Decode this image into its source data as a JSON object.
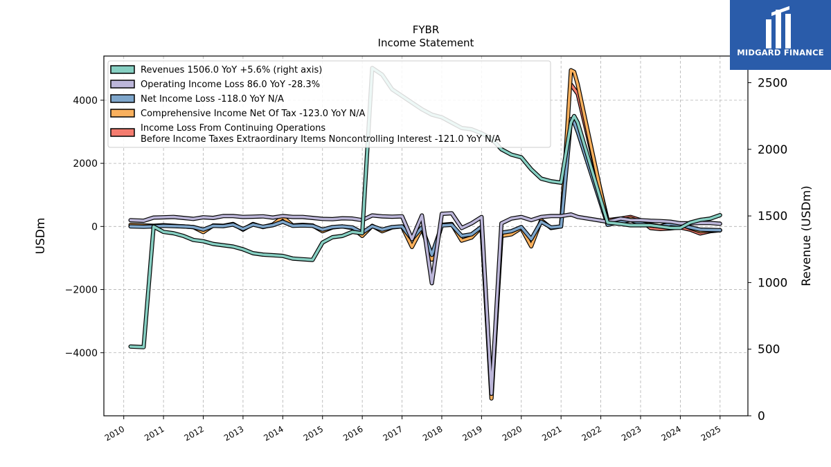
{
  "brand": {
    "name": "MIDGARD FINANCE",
    "color": "#2a5caa"
  },
  "chart_data": {
    "type": "line",
    "title": "FYBR",
    "subtitle": "Income Statement",
    "ylabel": "USDm",
    "ylabel_right": "Revenue (USDm)",
    "ylim": [
      -6000,
      5400
    ],
    "ylim_right": [
      0,
      2700
    ],
    "xlim": [
      2009.5,
      2025.7
    ],
    "yticks": [
      -4000,
      -2000,
      0,
      2000,
      4000
    ],
    "yticks_right": [
      0,
      500,
      1000,
      1500,
      2000,
      2500
    ],
    "xticks": [
      "2010",
      "2011",
      "2012",
      "2013",
      "2014",
      "2015",
      "2016",
      "2017",
      "2018",
      "2019",
      "2020",
      "2021",
      "2022",
      "2023",
      "2024",
      "2025"
    ],
    "grid": true,
    "legend_position": "top-left",
    "series": [
      {
        "name": "Income Loss From Continuing Operations\nBefore Income Taxes Extraordinary Items Noncontrolling Interest  -121.0 YoY N/A",
        "color": "#f47c6f",
        "axis": "left",
        "x": [
          2021.25,
          2021.42,
          2022.17,
          2022.5,
          2022.75,
          2023.0,
          2023.25,
          2023.5,
          2023.75,
          2024.0,
          2024.25,
          2024.5,
          2024.75,
          2025.0
        ],
        "y": [
          4500,
          4200,
          200,
          250,
          300,
          200,
          -50,
          -80,
          -60,
          -30,
          -100,
          -220,
          -150,
          -121
        ]
      },
      {
        "name": "Comprehensive Income Net Of Tax  -123.0 YoY N/A",
        "color": "#f9b05d",
        "axis": "left",
        "x": [
          2010.17,
          2010.5,
          2010.75,
          2011.0,
          2011.25,
          2011.5,
          2011.75,
          2012.0,
          2012.25,
          2012.5,
          2012.75,
          2013.0,
          2013.25,
          2013.5,
          2013.75,
          2014.0,
          2014.25,
          2014.5,
          2014.75,
          2015.0,
          2015.25,
          2015.5,
          2015.75,
          2016.0,
          2016.25,
          2016.5,
          2016.75,
          2017.0,
          2017.25,
          2017.5,
          2017.75,
          2018.0,
          2018.25,
          2018.5,
          2018.75,
          2019.0,
          2019.25,
          2019.5,
          2019.75,
          2020.0,
          2020.25,
          2020.5,
          2020.75,
          2021.0,
          2021.25,
          2021.33,
          2021.42,
          2022.17,
          2022.5,
          2022.75,
          2023.0,
          2023.25,
          2023.5,
          2023.75,
          2024.0,
          2024.25,
          2024.5,
          2024.75,
          2025.0
        ],
        "y": [
          50,
          30,
          20,
          40,
          20,
          0,
          -20,
          -180,
          30,
          20,
          80,
          -100,
          80,
          -20,
          60,
          300,
          30,
          50,
          30,
          -150,
          -30,
          0,
          -50,
          -300,
          20,
          -150,
          -30,
          0,
          -650,
          -50,
          -1050,
          50,
          80,
          -450,
          -350,
          -20,
          -5450,
          -300,
          -250,
          -50,
          -630,
          200,
          -50,
          0,
          4950,
          4900,
          4500,
          100,
          200,
          250,
          150,
          50,
          0,
          100,
          80,
          -50,
          -150,
          -130,
          -123
        ]
      },
      {
        "name": "Net Income Loss  -118.0 YoY N/A",
        "color": "#7ea6cb",
        "axis": "left",
        "x": [
          2010.17,
          2010.5,
          2010.75,
          2011.0,
          2011.25,
          2011.5,
          2011.75,
          2012.0,
          2012.25,
          2012.5,
          2012.75,
          2013.0,
          2013.25,
          2013.5,
          2013.75,
          2014.0,
          2014.25,
          2014.5,
          2014.75,
          2015.0,
          2015.25,
          2015.5,
          2015.75,
          2016.0,
          2016.25,
          2016.5,
          2016.75,
          2017.0,
          2017.25,
          2017.5,
          2017.75,
          2018.0,
          2018.25,
          2018.5,
          2018.75,
          2019.0,
          2019.25,
          2019.5,
          2019.75,
          2020.0,
          2020.25,
          2020.5,
          2020.75,
          2021.0,
          2021.25,
          2021.33,
          2021.42,
          2022.17,
          2022.5,
          2022.75,
          2023.0,
          2023.25,
          2023.5,
          2023.75,
          2024.0,
          2024.25,
          2024.5,
          2024.75,
          2025.0
        ],
        "y": [
          0,
          -10,
          0,
          20,
          10,
          0,
          -20,
          -100,
          20,
          10,
          60,
          -80,
          60,
          -10,
          40,
          150,
          20,
          30,
          20,
          -100,
          -20,
          0,
          -30,
          -200,
          10,
          -100,
          -20,
          0,
          -400,
          -30,
          -900,
          30,
          50,
          -300,
          -250,
          -10,
          -5300,
          -200,
          -150,
          -20,
          -400,
          150,
          -30,
          0,
          3400,
          3300,
          3000,
          50,
          150,
          200,
          100,
          30,
          0,
          80,
          50,
          -30,
          -100,
          -110,
          -118
        ]
      },
      {
        "name": "Operating Income Loss  86.0 YoY -28.3%",
        "color": "#bcb6d9",
        "axis": "left",
        "x": [
          2010.17,
          2010.5,
          2010.75,
          2011.0,
          2011.25,
          2011.5,
          2011.75,
          2012.0,
          2012.25,
          2012.5,
          2012.75,
          2013.0,
          2013.25,
          2013.5,
          2013.75,
          2014.0,
          2014.25,
          2014.5,
          2014.75,
          2015.0,
          2015.25,
          2015.5,
          2015.75,
          2016.0,
          2016.25,
          2016.5,
          2016.75,
          2017.0,
          2017.25,
          2017.5,
          2017.75,
          2018.0,
          2018.25,
          2018.5,
          2018.75,
          2019.0,
          2019.25,
          2019.5,
          2019.75,
          2020.0,
          2020.25,
          2020.5,
          2020.75,
          2021.0,
          2021.25,
          2021.42,
          2022.17,
          2022.5,
          2022.75,
          2023.0,
          2023.25,
          2023.5,
          2023.75,
          2024.0,
          2024.25,
          2024.5,
          2024.75,
          2025.0
        ],
        "y": [
          200,
          180,
          280,
          290,
          300,
          270,
          240,
          290,
          270,
          330,
          330,
          300,
          310,
          320,
          280,
          330,
          300,
          300,
          270,
          240,
          230,
          260,
          250,
          200,
          350,
          320,
          310,
          320,
          -400,
          350,
          -1800,
          400,
          420,
          -50,
          100,
          300,
          -5300,
          100,
          250,
          300,
          200,
          300,
          330,
          330,
          380,
          300,
          150,
          250,
          200,
          200,
          180,
          170,
          150,
          100,
          100,
          110,
          110,
          86
        ]
      },
      {
        "name": "Revenues  1506.0 YoY +5.6% (right axis)",
        "color": "#86cfc2",
        "axis": "right",
        "x": [
          2010.17,
          2010.5,
          2010.75,
          2011.0,
          2011.25,
          2011.5,
          2011.75,
          2012.0,
          2012.25,
          2012.5,
          2012.75,
          2013.0,
          2013.25,
          2013.5,
          2013.75,
          2014.0,
          2014.25,
          2014.5,
          2014.75,
          2015.0,
          2015.25,
          2015.5,
          2015.75,
          2016.0,
          2016.25,
          2016.5,
          2016.75,
          2017.0,
          2017.25,
          2017.5,
          2017.75,
          2018.0,
          2018.25,
          2018.5,
          2018.75,
          2019.0,
          2019.25,
          2019.5,
          2019.75,
          2020.0,
          2020.25,
          2020.5,
          2020.75,
          2021.0,
          2021.25,
          2021.33,
          2021.42,
          2022.17,
          2022.5,
          2022.75,
          2023.0,
          2023.25,
          2023.5,
          2023.75,
          2024.0,
          2024.25,
          2024.5,
          2024.75,
          2025.0
        ],
        "y": [
          520,
          515,
          1420,
          1380,
          1370,
          1350,
          1320,
          1310,
          1290,
          1280,
          1270,
          1250,
          1220,
          1210,
          1205,
          1200,
          1180,
          1175,
          1170,
          1300,
          1340,
          1350,
          1380,
          1370,
          2610,
          2560,
          2450,
          2400,
          2350,
          2300,
          2260,
          2240,
          2200,
          2160,
          2150,
          2120,
          2080,
          2000,
          1960,
          1940,
          1850,
          1780,
          1760,
          1750,
          2200,
          2250,
          2200,
          1450,
          1440,
          1430,
          1430,
          1430,
          1420,
          1410,
          1410,
          1450,
          1470,
          1480,
          1506
        ]
      }
    ]
  }
}
